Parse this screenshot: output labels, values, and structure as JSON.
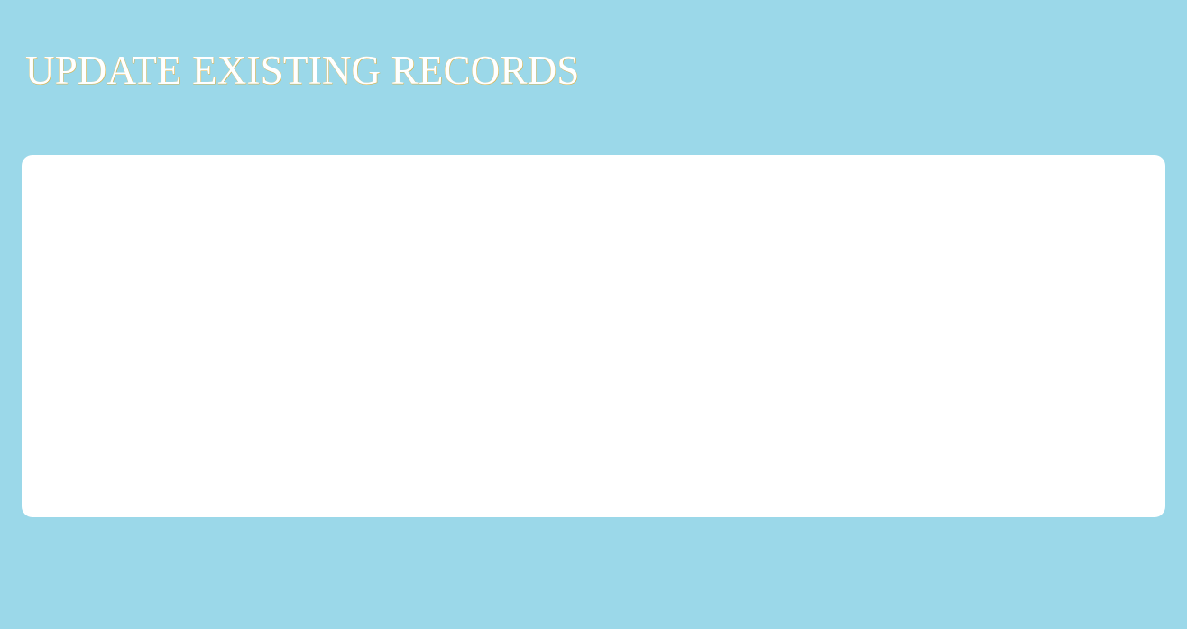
{
  "page": {
    "title": "UPDATE EXISTING RECORDS"
  },
  "colors": {
    "background": "#9BD8E9",
    "card": "#FFFFFF",
    "title_text": "#FFFFFF",
    "title_outline": "#D9B24A"
  }
}
